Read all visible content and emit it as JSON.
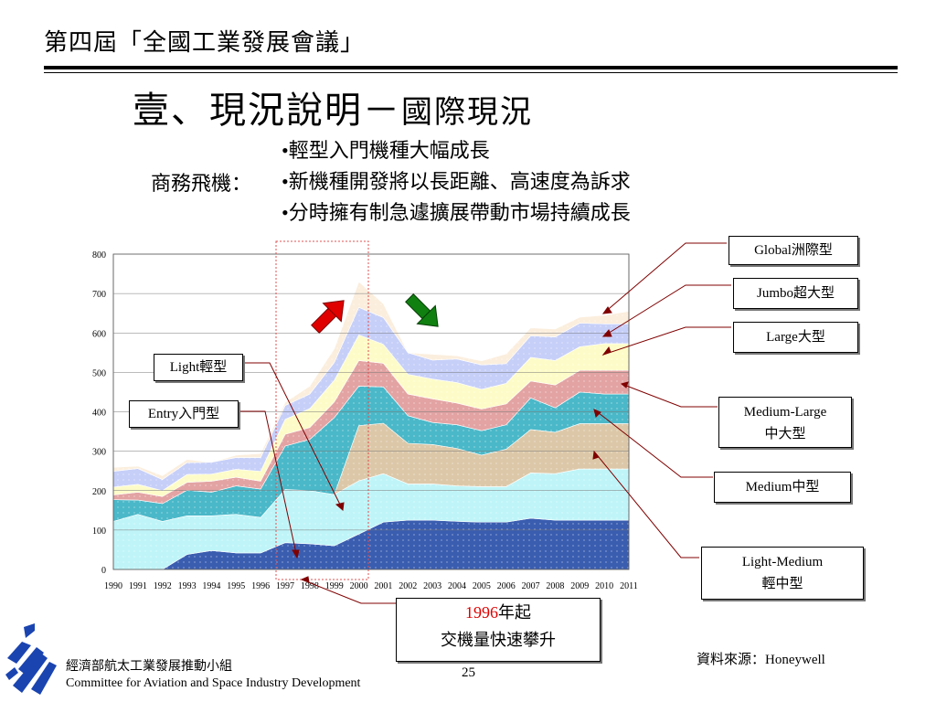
{
  "header": {
    "conference_title": "第四屆「全國工業發展會議」"
  },
  "slide": {
    "title_main": "壹、現況說明－",
    "title_sub": "國際現況",
    "category_label": "商務飛機：",
    "bullets": [
      "•輕型入門機種大幅成長",
      "•新機種開發將以長距離、高速度為訴求",
      "•分時擁有制急遽擴展帶動市場持續成長"
    ]
  },
  "chart_data": {
    "type": "area",
    "stacked": true,
    "x": [
      "1990",
      "1991",
      "1992",
      "1993",
      "1994",
      "1995",
      "1996",
      "1997",
      "1998",
      "1999",
      "2000",
      "2001",
      "2002",
      "2003",
      "2004",
      "2005",
      "2006",
      "2007",
      "2008",
      "2009",
      "2010",
      "2011"
    ],
    "ylim": [
      0,
      800
    ],
    "yticks": [
      0,
      100,
      200,
      300,
      400,
      500,
      600,
      700,
      800
    ],
    "series": [
      {
        "name": "Entry入門型",
        "color": "#3a5db0",
        "values": [
          0,
          0,
          0,
          38,
          48,
          42,
          42,
          68,
          65,
          60,
          90,
          120,
          125,
          125,
          122,
          120,
          120,
          130,
          125,
          125,
          125,
          125
        ]
      },
      {
        "name": "Light輕型",
        "color": "#bff5f8",
        "values": [
          122,
          140,
          122,
          98,
          88,
          98,
          90,
          135,
          135,
          130,
          135,
          123,
          92,
          92,
          90,
          90,
          90,
          115,
          118,
          130,
          130,
          130
        ]
      },
      {
        "name": "Light-Medium輕中型",
        "color": "#dcc8a8",
        "values": [
          0,
          0,
          0,
          0,
          0,
          0,
          0,
          0,
          0,
          0,
          140,
          128,
          103,
          100,
          95,
          80,
          95,
          110,
          105,
          115,
          115,
          115
        ]
      },
      {
        "name": "Medium中型",
        "color": "#4ab8c8",
        "values": [
          55,
          36,
          45,
          65,
          60,
          72,
          72,
          110,
          130,
          195,
          100,
          92,
          70,
          56,
          60,
          62,
          62,
          80,
          62,
          80,
          75,
          75
        ]
      },
      {
        "name": "Medium-Large中大型",
        "color": "#e3a3a3",
        "values": [
          12,
          20,
          18,
          20,
          28,
          22,
          20,
          30,
          30,
          40,
          65,
          60,
          55,
          60,
          55,
          55,
          53,
          43,
          58,
          55,
          60,
          60
        ]
      },
      {
        "name": "Large大型",
        "color": "#fdfcc8",
        "values": [
          20,
          20,
          15,
          20,
          18,
          20,
          25,
          38,
          48,
          55,
          65,
          48,
          50,
          50,
          52,
          50,
          52,
          60,
          62,
          60,
          68,
          68
        ]
      },
      {
        "name": "Jumbo超大型",
        "color": "#c6cff8",
        "values": [
          40,
          40,
          28,
          30,
          30,
          30,
          35,
          35,
          37,
          45,
          70,
          68,
          55,
          48,
          60,
          62,
          50,
          55,
          60,
          60,
          50,
          50
        ]
      },
      {
        "name": "Global洲際型",
        "color": "#fbeedd",
        "values": [
          10,
          6,
          10,
          8,
          0,
          6,
          10,
          8,
          20,
          35,
          65,
          35,
          0,
          15,
          8,
          10,
          25,
          20,
          20,
          15,
          22,
          32
        ]
      }
    ]
  },
  "callouts": {
    "light": "Light輕型",
    "entry": "Entry入門型",
    "global": "Global洲際型",
    "jumbo": "Jumbo超大型",
    "large": "Large大型",
    "medium_large_1": "Medium-Large",
    "medium_large_2": "中大型",
    "medium": "Medium中型",
    "light_medium_1": "Light-Medium",
    "light_medium_2": "輕中型"
  },
  "bottom_note": {
    "year": "1996",
    "line1_rest": "年起",
    "line2": "交機量快速攀升"
  },
  "source": "資料來源：Honeywell",
  "page_number": "25",
  "footer": {
    "org_zh": "經濟部航太工業發展推動小組",
    "org_en": "Committee for Aviation and Space Industry Development"
  }
}
